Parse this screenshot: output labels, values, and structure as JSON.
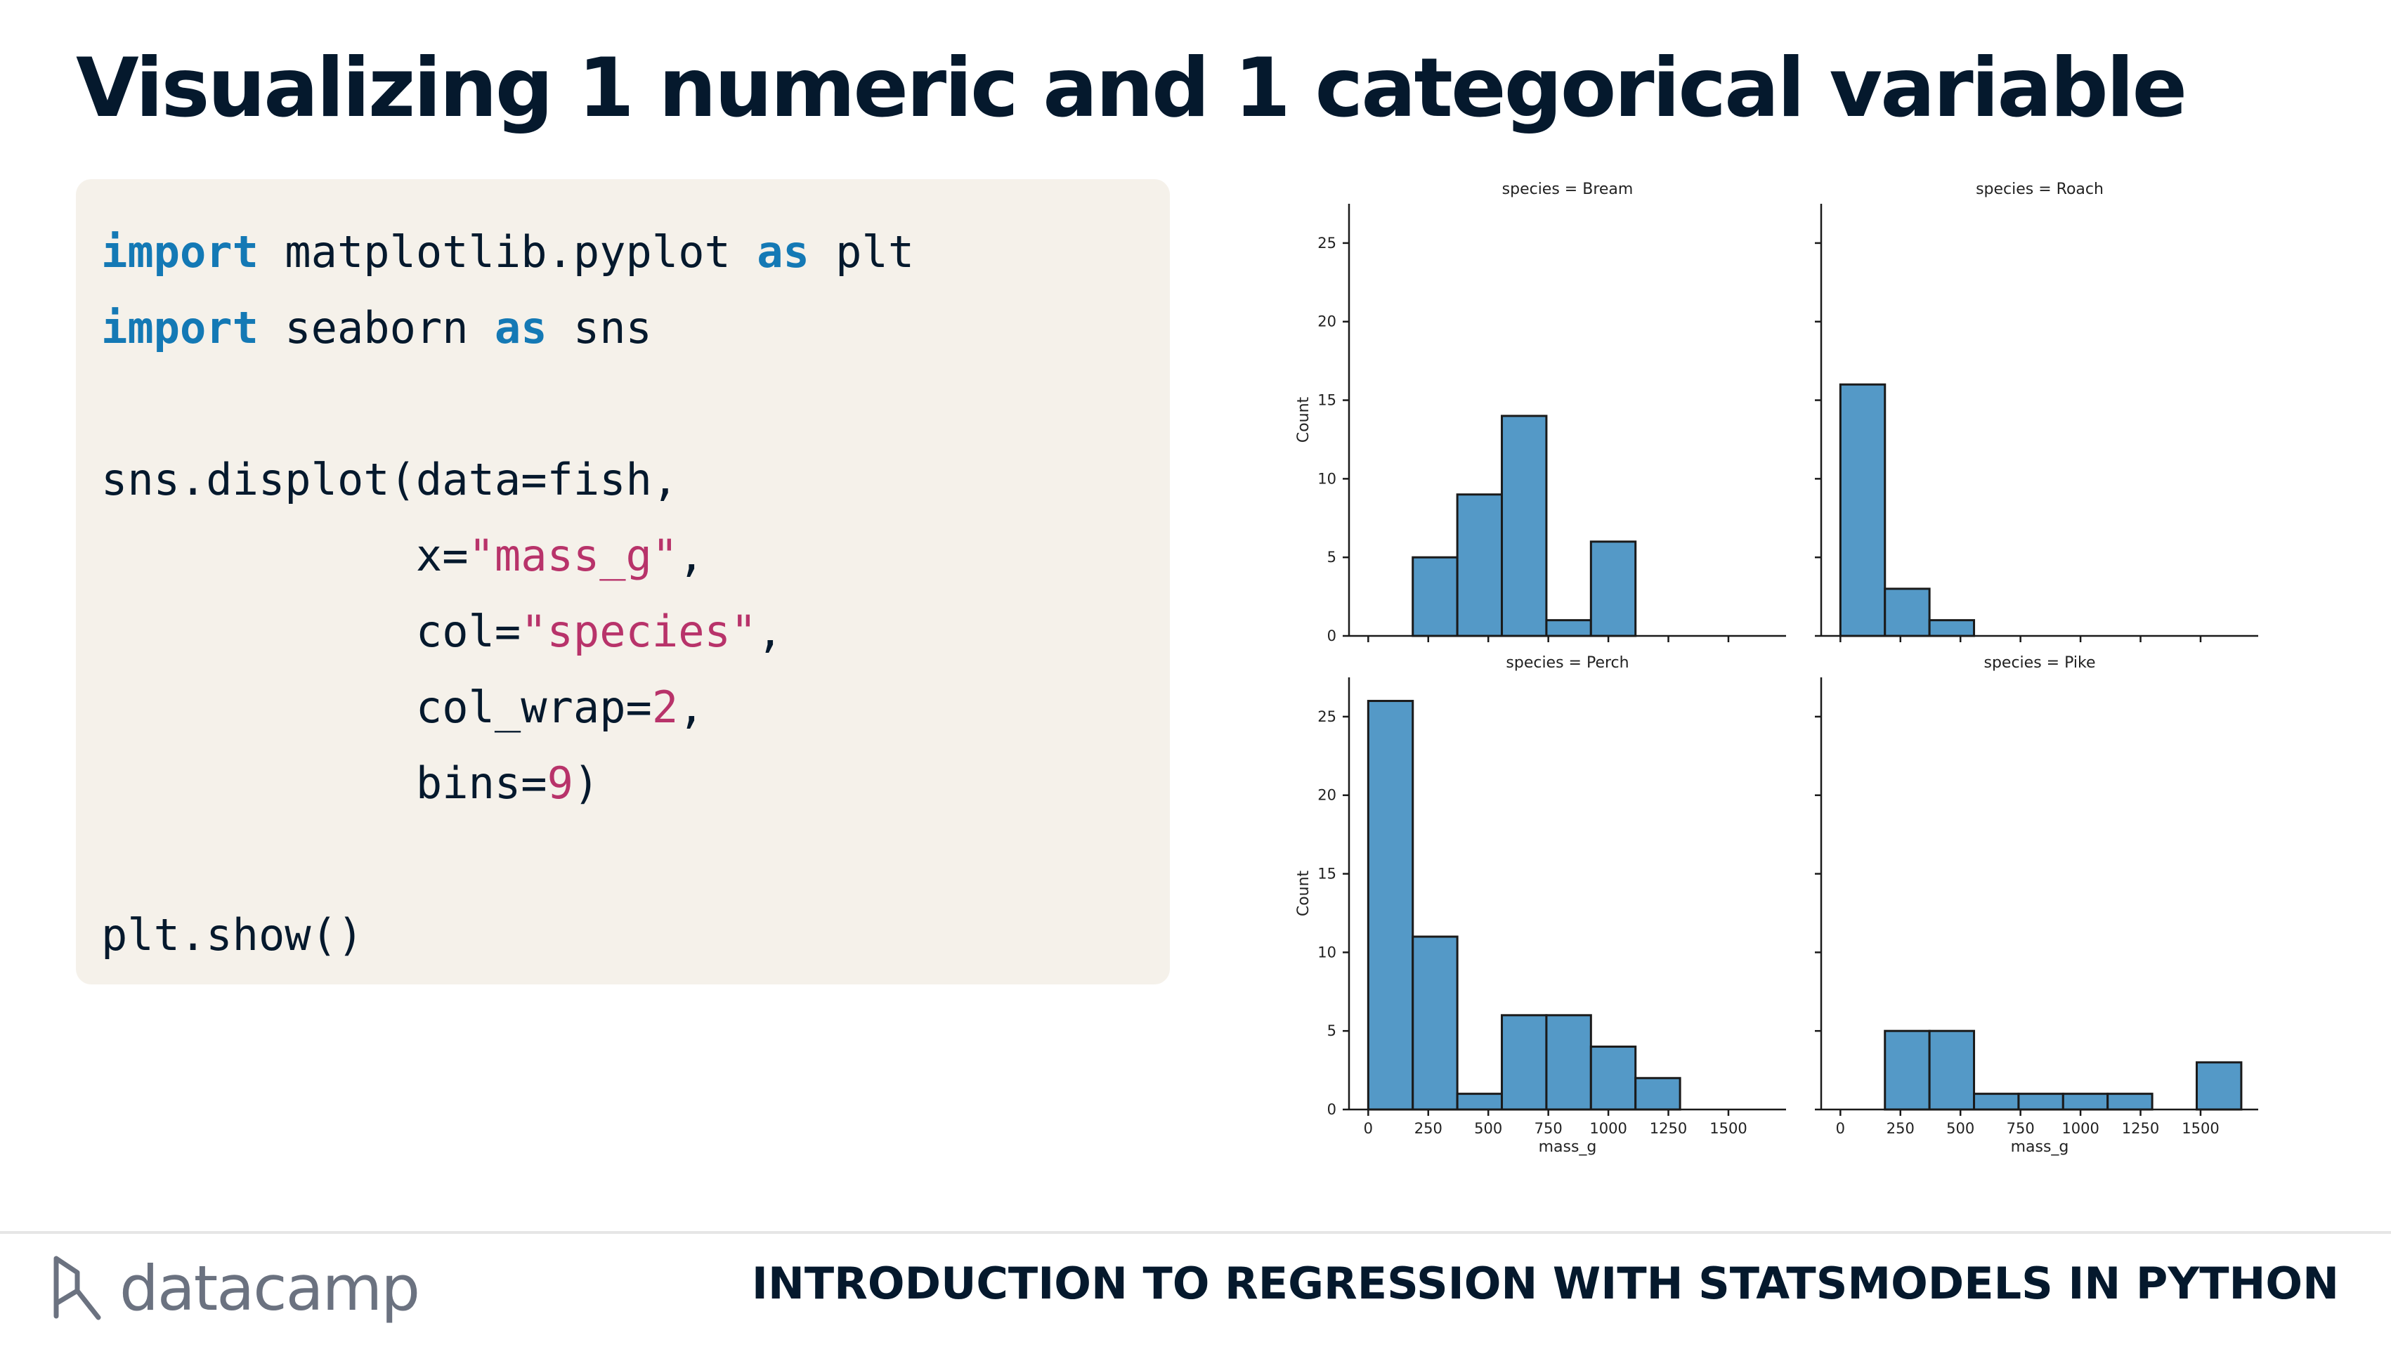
{
  "slide": {
    "title": "Visualizing 1 numeric and 1 categorical variable",
    "course_title": "INTRODUCTION TO REGRESSION WITH STATSMODELS IN PYTHON",
    "brand": "datacamp"
  },
  "code": {
    "lines": [
      [
        {
          "t": "import",
          "c": "kw"
        },
        {
          "t": " matplotlib.pyplot ",
          "c": ""
        },
        {
          "t": "as",
          "c": "kw"
        },
        {
          "t": " plt",
          "c": ""
        }
      ],
      [
        {
          "t": "import",
          "c": "kw"
        },
        {
          "t": " seaborn ",
          "c": ""
        },
        {
          "t": "as",
          "c": "kw"
        },
        {
          "t": " sns",
          "c": ""
        }
      ],
      [],
      [
        {
          "t": "sns.displot(data=fish,",
          "c": ""
        }
      ],
      [
        {
          "t": "            x=",
          "c": ""
        },
        {
          "t": "\"mass_g\"",
          "c": "str"
        },
        {
          "t": ",",
          "c": ""
        }
      ],
      [
        {
          "t": "            col=",
          "c": ""
        },
        {
          "t": "\"species\"",
          "c": "str"
        },
        {
          "t": ",",
          "c": ""
        }
      ],
      [
        {
          "t": "            col_wrap=",
          "c": ""
        },
        {
          "t": "2",
          "c": "num"
        },
        {
          "t": ",",
          "c": ""
        }
      ],
      [
        {
          "t": "            bins=",
          "c": ""
        },
        {
          "t": "9",
          "c": "num"
        },
        {
          "t": ")",
          "c": ""
        }
      ],
      [],
      [
        {
          "t": "plt.show()",
          "c": ""
        }
      ]
    ]
  },
  "chart_data": {
    "type": "bar",
    "ylabel": "Count",
    "xlabel": "mass_g",
    "ylim": [
      0,
      27.5
    ],
    "xlim": [
      -80,
      1740
    ],
    "yticks": [
      0,
      5,
      10,
      15,
      20,
      25
    ],
    "xticks": [
      0,
      250,
      500,
      750,
      1000,
      1250,
      1500
    ],
    "bin_width": 185.5,
    "bar_color": "#5499c7",
    "panels": [
      {
        "title": "species = Bream",
        "bins_start": 185.5,
        "values": [
          5,
          9,
          14,
          1,
          6
        ]
      },
      {
        "title": "species = Roach",
        "bins_start": 0,
        "values": [
          16,
          3,
          1
        ]
      },
      {
        "title": "species = Perch",
        "bins_start": 0,
        "values": [
          26,
          11,
          1,
          6,
          6,
          4,
          2
        ]
      },
      {
        "title": "species = Pike",
        "bins_start": 185.5,
        "values": [
          5,
          5,
          1,
          1,
          1,
          1,
          0,
          3
        ]
      }
    ]
  }
}
